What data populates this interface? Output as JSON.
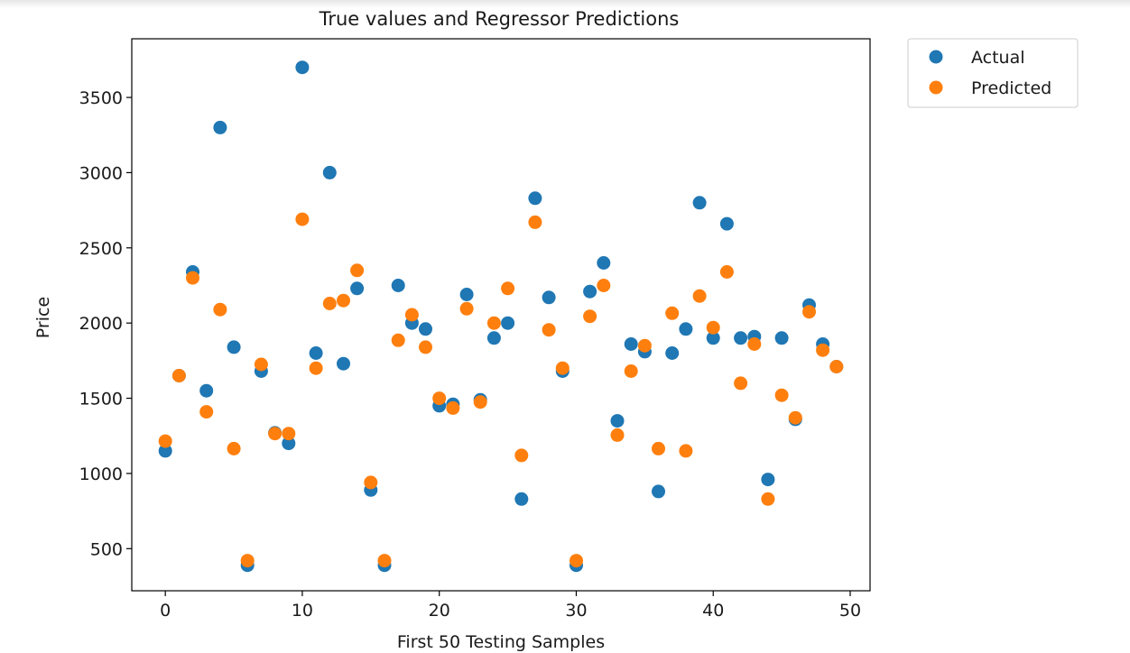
{
  "chart_data": {
    "type": "scatter",
    "title": "True values and Regressor Predictions",
    "xlabel": "First 50 Testing Samples",
    "ylabel": "Price",
    "xlim": [
      -2.45,
      51.45
    ],
    "ylim": [
      220,
      3890
    ],
    "xticks": [
      0,
      10,
      20,
      30,
      40,
      50
    ],
    "yticks": [
      500,
      1000,
      1500,
      2000,
      2500,
      3000,
      3500
    ],
    "grid": false,
    "legend_position": "outside-top-right",
    "series": [
      {
        "name": "Actual",
        "color": "#1f77b4",
        "x": [
          0,
          1,
          2,
          3,
          4,
          5,
          6,
          7,
          8,
          9,
          10,
          11,
          12,
          13,
          14,
          15,
          16,
          17,
          18,
          19,
          20,
          21,
          22,
          23,
          24,
          25,
          26,
          27,
          28,
          29,
          30,
          31,
          32,
          33,
          34,
          35,
          36,
          37,
          38,
          39,
          40,
          41,
          42,
          43,
          44,
          45,
          46,
          47,
          48,
          49
        ],
        "y": [
          1150,
          1650,
          2340,
          1550,
          3300,
          1840,
          390,
          1680,
          1270,
          1200,
          3700,
          1800,
          3000,
          1730,
          2230,
          890,
          390,
          2250,
          2000,
          1960,
          1450,
          1460,
          2190,
          1490,
          1900,
          2000,
          830,
          2830,
          2170,
          1680,
          390,
          2210,
          2400,
          1350,
          1860,
          1810,
          880,
          1800,
          1960,
          2800,
          1900,
          2660,
          1900,
          1910,
          960,
          1900,
          1360,
          2120,
          1860,
          1710
        ]
      },
      {
        "name": "Predicted",
        "color": "#ff7f0e",
        "x": [
          0,
          1,
          2,
          3,
          4,
          5,
          6,
          7,
          8,
          9,
          10,
          11,
          12,
          13,
          14,
          15,
          16,
          17,
          18,
          19,
          20,
          21,
          22,
          23,
          24,
          25,
          26,
          27,
          28,
          29,
          30,
          31,
          32,
          33,
          34,
          35,
          36,
          37,
          38,
          39,
          40,
          41,
          42,
          43,
          44,
          45,
          46,
          47,
          48,
          49
        ],
        "y": [
          1215,
          1650,
          2300,
          1410,
          2090,
          1165,
          420,
          1725,
          1265,
          1265,
          2690,
          1700,
          2130,
          2150,
          2350,
          940,
          420,
          1885,
          2055,
          1840,
          1500,
          1435,
          2095,
          1475,
          2000,
          2230,
          1120,
          2670,
          1955,
          1700,
          420,
          2045,
          2250,
          1255,
          1680,
          1850,
          1165,
          2065,
          1150,
          2180,
          1970,
          2340,
          1600,
          1860,
          830,
          1520,
          1370,
          2075,
          1820,
          1710
        ]
      }
    ]
  }
}
